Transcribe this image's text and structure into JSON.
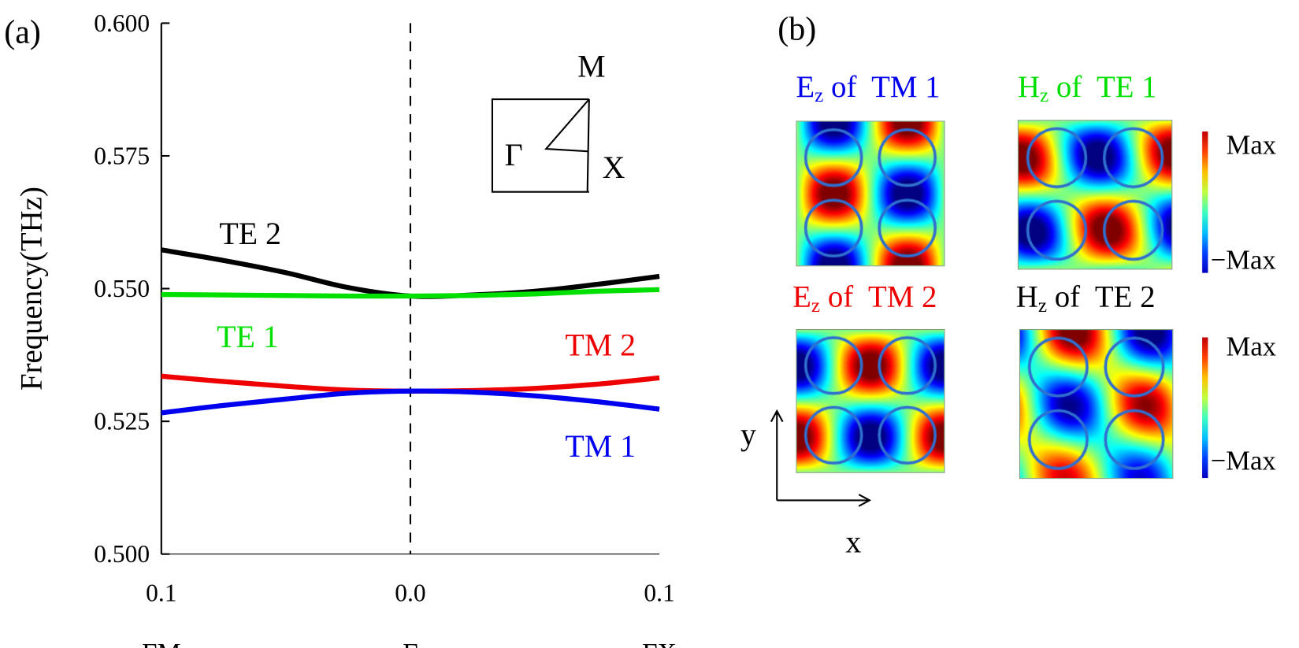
{
  "panel_a": {
    "label": "(a)",
    "inset": {
      "M": "M",
      "Gamma": "Γ",
      "X": "X"
    },
    "curve_labels": {
      "TE2": "TE 2",
      "TE1": "TE 1",
      "TM2": "TM 2",
      "TM1": "TM 1"
    }
  },
  "chart_data": {
    "type": "line",
    "ylabel": "Frequency(THz)",
    "xlabel": "",
    "ylim": [
      0.5,
      0.6
    ],
    "xlim": [
      -0.1,
      0.1
    ],
    "yticks": [
      "0.500",
      "0.525",
      "0.550",
      "0.575",
      "0.600"
    ],
    "xticks": [
      {
        "x": -0.1,
        "label": "0.1",
        "point": "ΓM"
      },
      {
        "x": 0.0,
        "label": "0.0",
        "point": "Γ"
      },
      {
        "x": 0.1,
        "label": "0.1",
        "point": "ΓX"
      }
    ],
    "x": [
      -0.1,
      -0.075,
      -0.05,
      -0.025,
      0.0,
      0.025,
      0.05,
      0.075,
      0.1
    ],
    "series": [
      {
        "name": "TE 2",
        "color": "#000000",
        "values": [
          0.5573,
          0.5553,
          0.553,
          0.5502,
          0.5486,
          0.5488,
          0.5495,
          0.5508,
          0.5523
        ]
      },
      {
        "name": "TE 1",
        "color": "#00e000",
        "values": [
          0.5489,
          0.5488,
          0.5487,
          0.5486,
          0.5486,
          0.5487,
          0.549,
          0.5495,
          0.5498
        ]
      },
      {
        "name": "TM 2",
        "color": "#ee0000",
        "values": [
          0.5335,
          0.5325,
          0.5316,
          0.5309,
          0.5307,
          0.5308,
          0.5312,
          0.532,
          0.5332
        ]
      },
      {
        "name": "TM 1",
        "color": "#0000ee",
        "values": [
          0.5266,
          0.528,
          0.5292,
          0.5303,
          0.5307,
          0.5305,
          0.5298,
          0.5287,
          0.5273
        ]
      }
    ],
    "vline_at": 0.0,
    "grid": false
  },
  "panel_b": {
    "label": "(b)",
    "maps": [
      {
        "field": "E",
        "sub": "z",
        "of": "of",
        "mode": "TM 1",
        "color": "#0000ee"
      },
      {
        "field": "H",
        "sub": "z",
        "of": "of",
        "mode": "TE 1",
        "color": "#00e000"
      },
      {
        "field": "E",
        "sub": "z",
        "of": "of",
        "mode": "TM 2",
        "color": "#ee0000"
      },
      {
        "field": "H",
        "sub": "z",
        "of": "of",
        "mode": "TE 2",
        "color": "#000000"
      }
    ],
    "colorbar": {
      "max": "Max",
      "min": "−Max",
      "colormap": "jet"
    },
    "axes": {
      "x": "x",
      "y": "y"
    }
  }
}
